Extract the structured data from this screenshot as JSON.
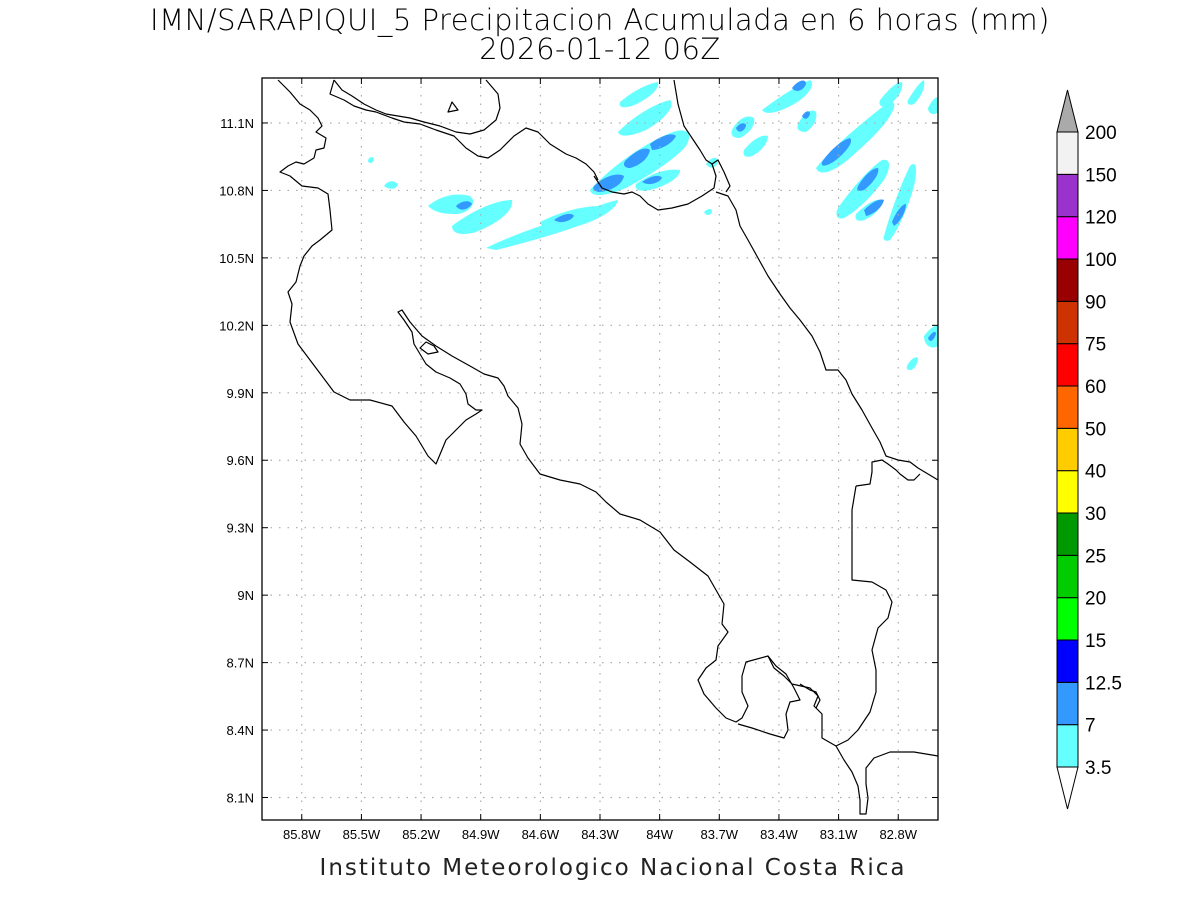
{
  "title": {
    "line1": "IMN/SARAPIQUI_5 Precipitacion Acumulada en 6 horas (mm)",
    "line2": "2026-01-12 06Z"
  },
  "footer": "Instituto Meteorologico Nacional Costa Rica",
  "map": {
    "lon_range": [
      -86.0,
      -82.6
    ],
    "lat_range": [
      8.0,
      11.3
    ],
    "lon_ticks": [
      {
        "v": -85.8,
        "label": "85.8W"
      },
      {
        "v": -85.5,
        "label": "85.5W"
      },
      {
        "v": -85.2,
        "label": "85.2W"
      },
      {
        "v": -84.9,
        "label": "84.9W"
      },
      {
        "v": -84.6,
        "label": "84.6W"
      },
      {
        "v": -84.3,
        "label": "84.3W"
      },
      {
        "v": -84.0,
        "label": "84W"
      },
      {
        "v": -83.7,
        "label": "83.7W"
      },
      {
        "v": -83.4,
        "label": "83.4W"
      },
      {
        "v": -83.1,
        "label": "83.1W"
      },
      {
        "v": -82.8,
        "label": "82.8W"
      }
    ],
    "lat_ticks": [
      {
        "v": 11.1,
        "label": "11.1N"
      },
      {
        "v": 10.8,
        "label": "10.8N"
      },
      {
        "v": 10.5,
        "label": "10.5N"
      },
      {
        "v": 10.2,
        "label": "10.2N"
      },
      {
        "v": 9.9,
        "label": "9.9N"
      },
      {
        "v": 9.6,
        "label": "9.6N"
      },
      {
        "v": 9.3,
        "label": "9.3N"
      },
      {
        "v": 9.0,
        "label": "9N"
      },
      {
        "v": 8.7,
        "label": "8.7N"
      },
      {
        "v": 8.4,
        "label": "8.4N"
      },
      {
        "v": 8.1,
        "label": "8.1N"
      }
    ],
    "grid": true
  },
  "colorbar": {
    "colors": [
      "#ffffff",
      "#66ffff",
      "#3399ff",
      "#0000ff",
      "#00ff00",
      "#00cc00",
      "#009900",
      "#ffff00",
      "#ffcc00",
      "#ff6600",
      "#ff0000",
      "#cc3300",
      "#990000",
      "#ff00ff",
      "#9933cc",
      "#f2f2f2",
      "#aaaaaa"
    ],
    "labels": [
      "3.5",
      "7",
      "12.5",
      "15",
      "20",
      "25",
      "30",
      "40",
      "50",
      "60",
      "75",
      "90",
      "100",
      "120",
      "150",
      "200"
    ]
  },
  "precip_colors": {
    "light": "#66ffff",
    "medium": "#3399ff"
  }
}
